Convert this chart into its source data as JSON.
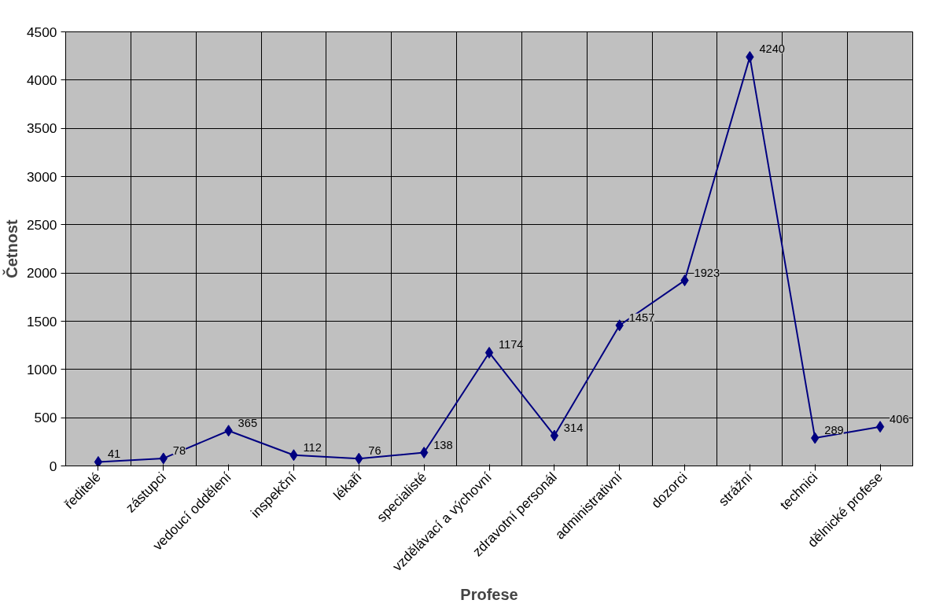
{
  "chart_data": {
    "type": "line",
    "xlabel": "Profese",
    "ylabel": "Četnost",
    "categories": [
      "ředitelé",
      "zástupci",
      "vedoucí oddělení",
      "inspekční",
      "lékaři",
      "specialisté",
      "vzdělávací a výchovní",
      "zdravotní personál",
      "administrativní",
      "dozorci",
      "strážní",
      "technici",
      "dělnické profese"
    ],
    "series": [
      {
        "color": "#000080",
        "values": [
          41,
          78,
          365,
          112,
          76,
          138,
          1174,
          314,
          1457,
          1923,
          4240,
          289,
          406
        ]
      }
    ],
    "ylim": [
      0,
      4500
    ],
    "yticks": [
      0,
      500,
      1000,
      1500,
      2000,
      2500,
      3000,
      3500,
      4000,
      4500
    ],
    "grid": true,
    "marker": "diamond",
    "line_style": "solid",
    "data_labels": true
  }
}
